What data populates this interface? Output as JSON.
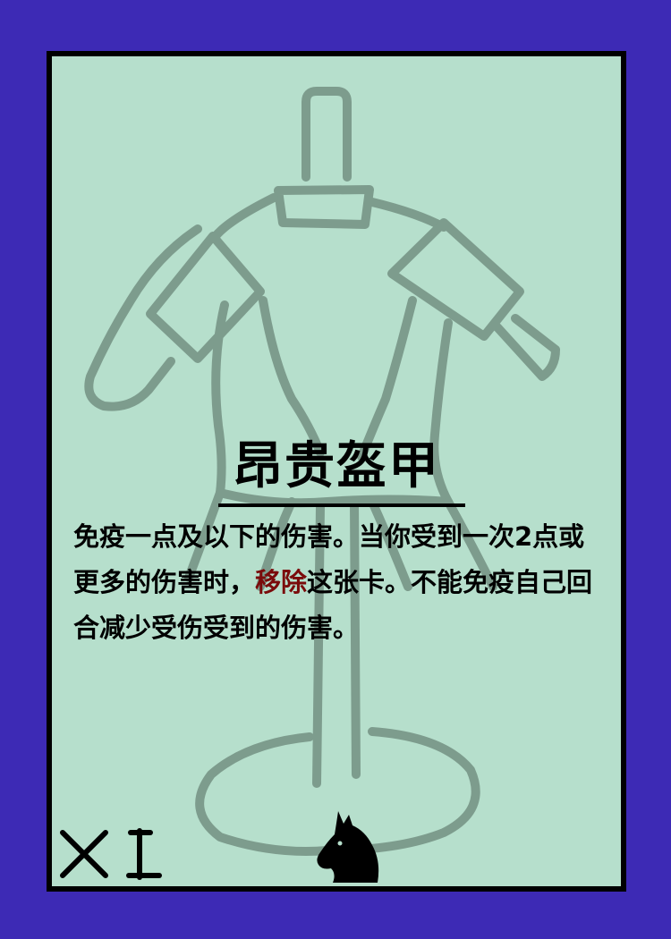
{
  "card": {
    "title": "昂贵盔甲",
    "text_part1": "免疫一点及以下的伤害。当你受到一次2点或更多的伤害时，",
    "keyword": "移除",
    "text_part2": "这张卡。不能免疫自己回合减少受伤受到的伤害。",
    "count": "X I",
    "faction_icon": "horse-head-icon",
    "colors": {
      "background": "#3d2ab5",
      "card_face": "#b6dfcc",
      "sketch_lines": "#7d9c8d",
      "keyword": "#7a0b0b",
      "border": "#000000"
    }
  }
}
